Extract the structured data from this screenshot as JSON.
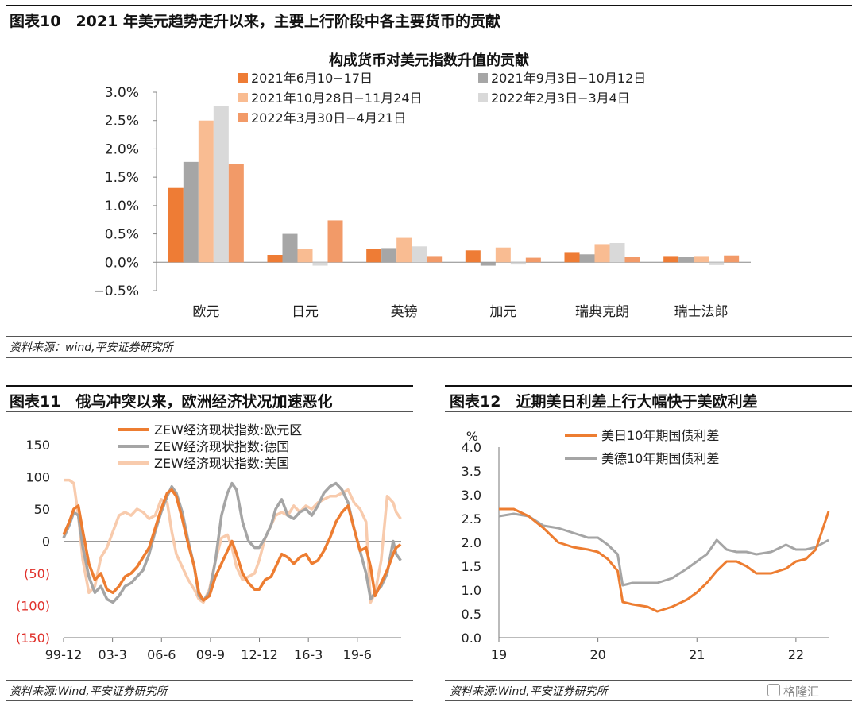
{
  "fig10": {
    "header": "图表10　2021 年美元趋势走升以来，主要上行阶段中各主要货币的贡献",
    "source": "资料来源：wind,平安证券研究所",
    "chart_data": {
      "type": "bar",
      "title": "构成货币对美元指数升值的贡献",
      "categories": [
        "欧元",
        "日元",
        "英镑",
        "加元",
        "瑞典克朗",
        "瑞士法郎"
      ],
      "ylim": [
        -0.5,
        3.0
      ],
      "yticks": [
        "3.0%",
        "2.5%",
        "2.0%",
        "1.5%",
        "1.0%",
        "0.5%",
        "0.0%",
        "−0.5%"
      ],
      "ytick_values": [
        3.0,
        2.5,
        2.0,
        1.5,
        1.0,
        0.5,
        0.0,
        -0.5
      ],
      "legend_position": "top",
      "series": [
        {
          "name": "2021年6月10−17日",
          "color": "#ee7c35",
          "values": [
            1.31,
            0.13,
            0.23,
            0.21,
            0.18,
            0.11
          ]
        },
        {
          "name": "2021年9月3日−10月12日",
          "color": "#a6a6a6",
          "values": [
            1.77,
            0.5,
            0.25,
            -0.06,
            0.14,
            0.09
          ]
        },
        {
          "name": "2021年10月28日−11月24日",
          "color": "#f9bc92",
          "values": [
            2.5,
            0.23,
            0.43,
            0.26,
            0.32,
            0.11
          ]
        },
        {
          "name": "2022年2月3日−3月4日",
          "color": "#d9d9d9",
          "values": [
            2.75,
            -0.06,
            0.28,
            -0.04,
            0.34,
            -0.05
          ]
        },
        {
          "name": "2022年3月30日−4月21日",
          "color": "#f29a68",
          "values": [
            1.74,
            0.74,
            0.11,
            0.08,
            0.1,
            0.12
          ]
        }
      ]
    }
  },
  "fig11": {
    "header": "图表11　俄乌冲突以来，欧洲经济状况加速恶化",
    "source": "资料来源:Wind,平安证券研究所",
    "chart_data": {
      "type": "line",
      "ylim": [
        -150,
        150
      ],
      "yticks": [
        "150",
        "100",
        "50",
        "0",
        "(50)",
        "(100)",
        "(150)"
      ],
      "ytick_values": [
        150,
        100,
        50,
        0,
        -50,
        -100,
        -150
      ],
      "negative_tick_color": "#e0302a",
      "xticks": [
        "99-12",
        "03-3",
        "06-6",
        "09-9",
        "12-12",
        "16-3",
        "19-6"
      ],
      "xtick_positions": [
        1999.92,
        2003.17,
        2006.42,
        2009.67,
        2012.92,
        2016.17,
        2019.42
      ],
      "xlim": [
        1999.92,
        2022.33
      ],
      "legend_position": "top",
      "series": [
        {
          "name": "ZEW经济现状指数:欧元区",
          "color": "#ed7d31",
          "x": [
            1999.92,
            2000.3,
            2000.6,
            2000.9,
            2001.2,
            2001.6,
            2002.0,
            2002.4,
            2002.8,
            2003.2,
            2003.6,
            2004.0,
            2004.4,
            2004.8,
            2005.2,
            2005.6,
            2006.0,
            2006.4,
            2006.8,
            2007.1,
            2007.4,
            2007.8,
            2008.2,
            2008.6,
            2008.9,
            2009.2,
            2009.6,
            2010.0,
            2010.4,
            2010.8,
            2011.1,
            2011.4,
            2011.8,
            2012.2,
            2012.6,
            2012.9,
            2013.3,
            2013.7,
            2014.0,
            2014.4,
            2014.8,
            2015.2,
            2015.6,
            2016.0,
            2016.4,
            2016.8,
            2017.2,
            2017.6,
            2018.0,
            2018.4,
            2018.8,
            2019.2,
            2019.6,
            2020.0,
            2020.3,
            2020.6,
            2021.0,
            2021.4,
            2021.8,
            2022.0,
            2022.3
          ],
          "y": [
            10,
            30,
            50,
            55,
            15,
            -35,
            -60,
            -50,
            -75,
            -80,
            -70,
            -55,
            -50,
            -40,
            -25,
            -10,
            20,
            50,
            75,
            80,
            70,
            35,
            -5,
            -40,
            -80,
            -92,
            -85,
            -55,
            -35,
            -15,
            0,
            -20,
            -50,
            -65,
            -75,
            -75,
            -60,
            -55,
            -40,
            -20,
            -25,
            -35,
            -25,
            -20,
            -35,
            -30,
            -15,
            5,
            30,
            45,
            55,
            20,
            -15,
            -10,
            -40,
            -85,
            -65,
            -45,
            -20,
            -10,
            -5
          ]
        },
        {
          "name": "ZEW经济现状指数:德国",
          "color": "#a5a5a5",
          "x": [
            1999.92,
            2000.3,
            2000.6,
            2000.9,
            2001.2,
            2001.6,
            2002.0,
            2002.4,
            2002.8,
            2003.2,
            2003.6,
            2004.0,
            2004.4,
            2004.8,
            2005.2,
            2005.6,
            2006.0,
            2006.4,
            2006.8,
            2007.1,
            2007.4,
            2007.8,
            2008.2,
            2008.6,
            2008.9,
            2009.2,
            2009.6,
            2010.0,
            2010.4,
            2010.8,
            2011.1,
            2011.4,
            2011.8,
            2012.2,
            2012.6,
            2012.9,
            2013.3,
            2013.7,
            2014.0,
            2014.4,
            2014.8,
            2015.2,
            2015.6,
            2016.0,
            2016.4,
            2016.8,
            2017.2,
            2017.6,
            2018.0,
            2018.4,
            2018.8,
            2019.2,
            2019.6,
            2020.0,
            2020.3,
            2020.6,
            2021.0,
            2021.4,
            2021.8,
            2022.0,
            2022.3
          ],
          "y": [
            5,
            25,
            45,
            40,
            -10,
            -55,
            -80,
            -70,
            -90,
            -95,
            -85,
            -70,
            -65,
            -55,
            -45,
            -20,
            15,
            45,
            70,
            85,
            75,
            45,
            0,
            -40,
            -85,
            -92,
            -80,
            -30,
            40,
            75,
            90,
            80,
            30,
            0,
            -10,
            -10,
            5,
            25,
            50,
            65,
            40,
            35,
            45,
            50,
            40,
            55,
            75,
            85,
            90,
            80,
            60,
            20,
            -15,
            -50,
            -90,
            -80,
            -70,
            -50,
            0,
            -20,
            -30
          ]
        },
        {
          "name": "ZEW经济现状指数:美国",
          "color": "#f8cbad",
          "x": [
            1999.92,
            2000.3,
            2000.6,
            2000.9,
            2001.2,
            2001.6,
            2002.0,
            2002.4,
            2002.8,
            2003.2,
            2003.6,
            2004.0,
            2004.4,
            2004.8,
            2005.2,
            2005.6,
            2006.0,
            2006.4,
            2006.8,
            2007.1,
            2007.4,
            2007.8,
            2008.2,
            2008.6,
            2008.9,
            2009.2,
            2009.6,
            2010.0,
            2010.4,
            2010.8,
            2011.1,
            2011.4,
            2011.8,
            2012.2,
            2012.6,
            2012.9,
            2013.3,
            2013.7,
            2014.0,
            2014.4,
            2014.8,
            2015.2,
            2015.6,
            2016.0,
            2016.4,
            2016.8,
            2017.2,
            2017.6,
            2018.0,
            2018.4,
            2018.8,
            2019.2,
            2019.6,
            2020.0,
            2020.3,
            2020.6,
            2021.0,
            2021.4,
            2021.8,
            2022.0,
            2022.3
          ],
          "y": [
            95,
            95,
            90,
            40,
            -30,
            -80,
            -70,
            -25,
            -10,
            15,
            40,
            45,
            40,
            50,
            45,
            35,
            40,
            65,
            60,
            15,
            -20,
            -40,
            -60,
            -75,
            -90,
            -95,
            -75,
            -30,
            5,
            10,
            -10,
            -40,
            -60,
            -55,
            -50,
            -30,
            5,
            25,
            40,
            45,
            40,
            55,
            45,
            55,
            50,
            60,
            65,
            70,
            70,
            75,
            80,
            60,
            50,
            30,
            -95,
            -80,
            -30,
            70,
            60,
            45,
            35
          ]
        }
      ]
    }
  },
  "fig12": {
    "header": "图表12　近期美日利差上行大幅快于美欧利差",
    "source": "资料来源:Wind,平安证券研究所",
    "watermark": "格隆汇",
    "chart_data": {
      "type": "line",
      "ylabel": "%",
      "ylim": [
        0.0,
        4.0
      ],
      "yticks": [
        "4.0",
        "3.5",
        "3.0",
        "2.5",
        "2.0",
        "1.5",
        "1.0",
        "0.5",
        "0.0"
      ],
      "ytick_values": [
        4.0,
        3.5,
        3.0,
        2.5,
        2.0,
        1.5,
        1.0,
        0.5,
        0.0
      ],
      "xticks": [
        "19",
        "20",
        "21",
        "22"
      ],
      "xtick_positions": [
        2019.0,
        2020.0,
        2021.0,
        2022.0
      ],
      "xlim": [
        2019.0,
        2022.33
      ],
      "legend_position": "top",
      "series": [
        {
          "name": "美日10年期国债利差",
          "color": "#ed7d31",
          "x": [
            2019.0,
            2019.15,
            2019.3,
            2019.45,
            2019.6,
            2019.75,
            2019.9,
            2020.0,
            2020.1,
            2020.2,
            2020.25,
            2020.35,
            2020.5,
            2020.6,
            2020.75,
            2020.9,
            2021.0,
            2021.1,
            2021.2,
            2021.3,
            2021.4,
            2021.5,
            2021.6,
            2021.75,
            2021.9,
            2022.0,
            2022.1,
            2022.2,
            2022.33
          ],
          "y": [
            2.7,
            2.7,
            2.55,
            2.3,
            2.0,
            1.9,
            1.85,
            1.8,
            1.65,
            1.4,
            0.75,
            0.7,
            0.65,
            0.55,
            0.65,
            0.8,
            0.95,
            1.15,
            1.4,
            1.6,
            1.6,
            1.5,
            1.35,
            1.35,
            1.45,
            1.6,
            1.65,
            1.85,
            2.65
          ]
        },
        {
          "name": "美德10年期国债利差",
          "color": "#a5a5a5",
          "x": [
            2019.0,
            2019.15,
            2019.3,
            2019.45,
            2019.6,
            2019.75,
            2019.9,
            2020.0,
            2020.1,
            2020.2,
            2020.25,
            2020.35,
            2020.5,
            2020.6,
            2020.75,
            2020.9,
            2021.0,
            2021.1,
            2021.2,
            2021.3,
            2021.4,
            2021.5,
            2021.6,
            2021.75,
            2021.9,
            2022.0,
            2022.1,
            2022.2,
            2022.33
          ],
          "y": [
            2.55,
            2.6,
            2.55,
            2.35,
            2.3,
            2.2,
            2.1,
            2.1,
            1.95,
            1.75,
            1.1,
            1.15,
            1.15,
            1.15,
            1.25,
            1.45,
            1.6,
            1.75,
            2.05,
            1.85,
            1.8,
            1.8,
            1.75,
            1.8,
            1.95,
            1.85,
            1.85,
            1.9,
            2.05
          ]
        }
      ]
    }
  }
}
